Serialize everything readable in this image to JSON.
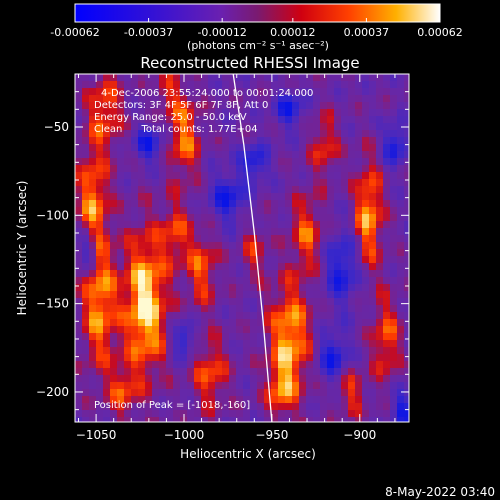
{
  "chart_data": {
    "type": "heatmap",
    "title": "Reconstructed RHESSI Image",
    "xlabel": "Heliocentric X (arcsec)",
    "ylabel": "Heliocentric Y (arcsec)",
    "xlim": [
      -1062,
      -872
    ],
    "ylim": [
      -217,
      -20
    ],
    "xticks": [
      -1050,
      -1000,
      -950,
      -900
    ],
    "yticks": [
      -50,
      -100,
      -150,
      -200
    ],
    "colorbar": {
      "min": -0.00062,
      "max": 0.00062,
      "ticks": [
        "-0.00062",
        "-0.00037",
        "-0.00012",
        "0.00012",
        "0.00037",
        "0.00062"
      ],
      "tick_values": [
        -0.00062,
        -0.00037,
        -0.00012,
        0.00012,
        0.00037,
        0.00062
      ],
      "unit_label": "(photons cm⁻² s⁻¹ asec⁻²)"
    },
    "info_lines": [
      "4-Dec-2006 23:55:24.000 to 00:01:24.000",
      "Detectors: 3F 4F 5F 6F 7F 8F, Att 0",
      "Energy Range: 25.0 - 50.0 keV",
      "Clean      Total counts: 1.77E+04"
    ],
    "peak_label": "Position of Peak = [-1018,-160]",
    "limb_curve": [
      [
        -972,
        -20
      ],
      [
        -966,
        -60
      ],
      [
        -960,
        -110
      ],
      [
        -955,
        -160
      ],
      [
        -950,
        -217
      ]
    ],
    "colors": {
      "negative_low": "#0000ff",
      "background": "#7030a0",
      "positive_mid": "#ff2000",
      "positive_high": "#ffffff",
      "limb": "#ffffff"
    }
  },
  "footer_date": "8-May-2022 03:40"
}
